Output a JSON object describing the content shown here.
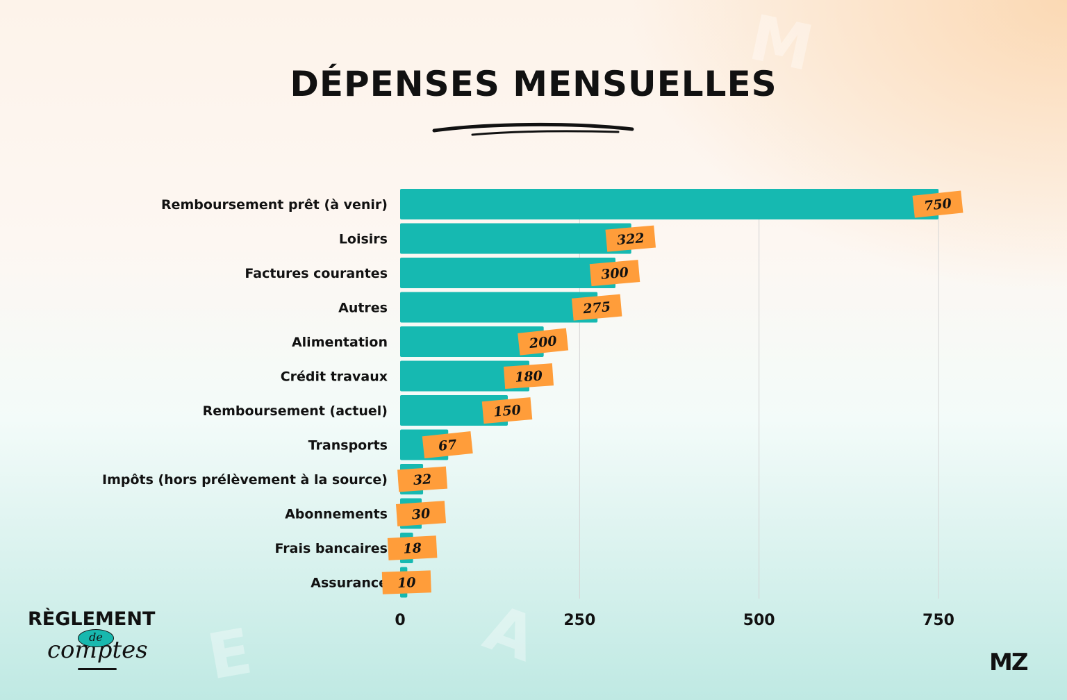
{
  "title": "DÉPENSES MENSUELLES",
  "chart_data": {
    "type": "bar",
    "orientation": "horizontal",
    "title": "DÉPENSES MENSUELLES",
    "xlabel": "",
    "ylabel": "",
    "xlim": [
      0,
      750
    ],
    "xticks": [
      "0",
      "250",
      "500",
      "750"
    ],
    "xtick_values": [
      0,
      250,
      500,
      750
    ],
    "grid": "vertical",
    "categories": [
      "Remboursement prêt (à venir)",
      "Loisirs",
      "Factures courantes",
      "Autres",
      "Alimentation",
      "Crédit travaux",
      "Remboursement (actuel)",
      "Transports",
      "Impôts (hors prélèvement à la source)",
      "Abonnements",
      "Frais bancaires",
      "Assurance"
    ],
    "values": [
      750,
      322,
      300,
      275,
      200,
      180,
      150,
      67,
      32,
      30,
      18,
      10
    ],
    "data_labels": [
      "750",
      "322",
      "300",
      "275",
      "200",
      "180",
      "150",
      "67",
      "32",
      "30",
      "18",
      "10"
    ],
    "colors": {
      "bar": "#16b9b1",
      "label_bg": "#ff9d3a",
      "text": "#111111"
    }
  },
  "brand": {
    "left_line1": "RÈGLEMENT",
    "left_line2": "de",
    "left_line3": "comptes",
    "right": "MZ"
  }
}
